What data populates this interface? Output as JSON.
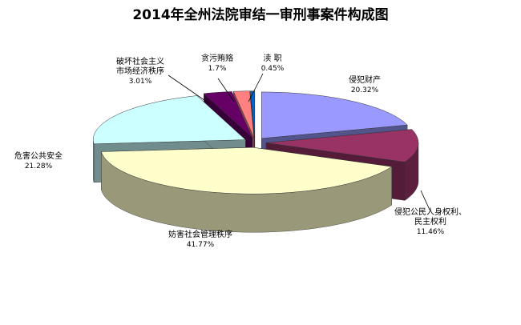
{
  "chart_data": {
    "type": "pie3d",
    "title": "2014年全州法院审结一审刑事案件构成图",
    "categories": [
      [
        "侵犯财产"
      ],
      [
        "侵犯公民人身权利、",
        "民主权利"
      ],
      [
        "妨害社会管理秩序"
      ],
      [
        "危害公共安全"
      ],
      [
        "破坏社会主义",
        "市场经济秩序"
      ],
      [
        "贪污贿赂"
      ],
      [
        "渎  职"
      ]
    ],
    "values": [
      20.32,
      11.46,
      41.77,
      21.28,
      3.01,
      1.7,
      0.45
    ],
    "value_labels": [
      "20.32%",
      "11.46%",
      "41.77%",
      "21.28%",
      "3.01%",
      "1.7%",
      "0.45%"
    ],
    "colors": [
      "#9999ff",
      "#993366",
      "#ffffcc",
      "#ccffff",
      "#660066",
      "#ff8080",
      "#0066cc"
    ]
  }
}
